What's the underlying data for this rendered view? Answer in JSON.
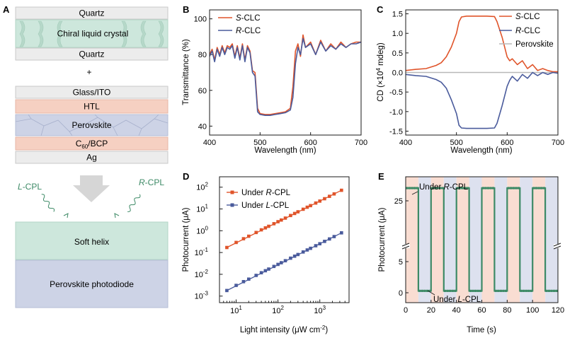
{
  "panel_A": {
    "label": "A",
    "top_stack": {
      "quartz_top": "Quartz",
      "clc": "Chiral liquid crystal",
      "quartz_bottom": "Quartz"
    },
    "plus": "+",
    "device_stack": {
      "glass": "Glass/ITO",
      "htl": "HTL",
      "perovskite": "Perovskite",
      "c60": "C",
      "c60_sub": "60",
      "c60_rest": "/BCP",
      "ag": "Ag"
    },
    "lcpl_prefix": "L",
    "lcpl_suffix": "-CPL",
    "rcpl_prefix": "R",
    "rcpl_suffix": "-CPL",
    "soft_helix": "Soft helix",
    "photodiode": "Perovskite photodiode",
    "colors": {
      "quartz": "#ececec",
      "clc": "#cde7dc",
      "htl": "#f6d0c2",
      "perovskite": "#cdd3e6",
      "green": "#3d8a66"
    }
  },
  "chart_data": [
    {
      "panel": "B",
      "type": "line",
      "xlabel": "Wavelength (nm)",
      "ylabel": "Transmittance (%)",
      "xlim": [
        400,
        700
      ],
      "ylim": [
        35,
        105
      ],
      "xticks": [
        400,
        500,
        600,
        700
      ],
      "yticks": [
        40,
        60,
        80,
        100
      ],
      "legend_position": "top-left",
      "series": [
        {
          "name_prefix": "S",
          "name_suffix": "-CLC",
          "color": "#e0542a",
          "x": [
            400,
            405,
            410,
            415,
            420,
            425,
            430,
            435,
            440,
            445,
            450,
            455,
            460,
            465,
            470,
            475,
            480,
            485,
            490,
            495,
            500,
            510,
            520,
            530,
            540,
            550,
            560,
            565,
            570,
            575,
            580,
            585,
            590,
            600,
            610,
            620,
            630,
            640,
            650,
            660,
            670,
            680,
            690,
            700
          ],
          "y": [
            80,
            83,
            77,
            84,
            80,
            85,
            81,
            85,
            84,
            86,
            79,
            85,
            78,
            86,
            77,
            85,
            82,
            71,
            70,
            50,
            47,
            46.5,
            46.5,
            47,
            47.5,
            48,
            50,
            62,
            82,
            86,
            79,
            91,
            84,
            87,
            80,
            88,
            82,
            86,
            83,
            87,
            84,
            86,
            87,
            87
          ]
        },
        {
          "name_prefix": "R",
          "name_suffix": "-CLC",
          "color": "#4a5b9c",
          "x": [
            400,
            405,
            410,
            415,
            420,
            425,
            430,
            435,
            440,
            445,
            450,
            455,
            460,
            465,
            470,
            475,
            480,
            485,
            490,
            495,
            500,
            510,
            520,
            530,
            540,
            550,
            560,
            565,
            570,
            575,
            580,
            585,
            590,
            600,
            610,
            620,
            630,
            640,
            650,
            660,
            670,
            680,
            690,
            700
          ],
          "y": [
            79,
            82,
            76,
            83,
            79,
            84,
            80,
            84,
            83,
            85,
            78,
            84,
            77,
            85,
            76,
            84,
            81,
            70,
            68,
            48,
            46.5,
            46,
            46,
            46.5,
            47,
            47.5,
            49,
            56,
            75,
            84,
            80,
            89,
            84,
            86,
            80,
            87,
            82,
            85,
            83,
            86,
            84,
            86,
            86,
            87
          ]
        }
      ]
    },
    {
      "panel": "C",
      "type": "line",
      "xlabel": "Wavelength (nm)",
      "ylabel_prefix": "CD (×10",
      "ylabel_sup": "4",
      "ylabel_suffix": " mdeg)",
      "xlim": [
        400,
        700
      ],
      "ylim": [
        -1.6,
        1.6
      ],
      "xticks": [
        400,
        500,
        600,
        700
      ],
      "yticks": [
        1.5,
        1.0,
        0.5,
        0.0,
        -0.5,
        -1.0,
        -1.5
      ],
      "ytick_labels": [
        "1.5",
        "1.0",
        "0.5",
        "0.0",
        "-0.5",
        "-1.0",
        "-1.5"
      ],
      "legend_position": "top-right",
      "series": [
        {
          "name_prefix": "S",
          "name_suffix": "-CLC",
          "color": "#e0542a",
          "x": [
            400,
            420,
            440,
            460,
            470,
            480,
            490,
            500,
            505,
            510,
            520,
            540,
            560,
            575,
            580,
            590,
            600,
            605,
            610,
            620,
            630,
            640,
            650,
            660,
            670,
            680,
            690,
            700
          ],
          "y": [
            0.05,
            0.08,
            0.1,
            0.18,
            0.25,
            0.4,
            0.65,
            1.0,
            1.3,
            1.42,
            1.44,
            1.44,
            1.44,
            1.43,
            1.3,
            0.9,
            0.4,
            0.3,
            0.35,
            0.2,
            0.3,
            0.1,
            0.2,
            0.05,
            0.1,
            0.05,
            0.02,
            0.02
          ]
        },
        {
          "name_prefix": "R",
          "name_suffix": "-CLC",
          "color": "#4a5b9c",
          "x": [
            400,
            420,
            440,
            460,
            470,
            480,
            490,
            500,
            505,
            510,
            520,
            540,
            560,
            575,
            580,
            590,
            600,
            605,
            610,
            620,
            630,
            640,
            650,
            660,
            670,
            680,
            690,
            700
          ],
          "y": [
            -0.05,
            -0.08,
            -0.1,
            -0.18,
            -0.25,
            -0.4,
            -0.7,
            -1.05,
            -1.35,
            -1.42,
            -1.43,
            -1.43,
            -1.43,
            -1.42,
            -1.3,
            -0.85,
            -0.35,
            -0.2,
            -0.1,
            -0.22,
            -0.05,
            -0.15,
            0.0,
            -0.08,
            0.0,
            -0.05,
            0.0,
            -0.02
          ]
        },
        {
          "name_prefix": "",
          "name_suffix": "Perovskite",
          "color": "#b8b8b8",
          "x": [
            400,
            700
          ],
          "y": [
            0,
            0
          ]
        }
      ]
    },
    {
      "panel": "D",
      "type": "scatter",
      "xlabel_prefix": "Light intensity (μW cm",
      "xlabel_sup": "-2",
      "xlabel_suffix": ")",
      "ylabel": "Photocurrent (μA)",
      "xscale": "log",
      "yscale": "log",
      "xlim": [
        4,
        5000
      ],
      "ylim": [
        0.0005,
        300
      ],
      "xticks": [
        10,
        100,
        1000
      ],
      "xtick_base": "10",
      "xtick_exps": [
        "1",
        "2",
        "3"
      ],
      "yticks": [
        0.001,
        0.01,
        0.1,
        1,
        10,
        100
      ],
      "ytick_base": "10",
      "ytick_exps": [
        "-3",
        "-2",
        "-1",
        "0",
        "1",
        "2"
      ],
      "legend_position": "top-left",
      "series": [
        {
          "name_prefix": "Under ",
          "name_italic": "R",
          "name_suffix": "-CPL",
          "color": "#e0542a",
          "x": [
            6,
            10,
            15,
            20,
            30,
            40,
            50,
            60,
            80,
            100,
            120,
            150,
            200,
            250,
            300,
            400,
            500,
            600,
            800,
            1000,
            1300,
            1700,
            2200,
            3300
          ],
          "y": [
            0.17,
            0.29,
            0.43,
            0.56,
            0.83,
            1.1,
            1.35,
            1.6,
            2.1,
            2.6,
            3.1,
            3.8,
            5.0,
            6.2,
            7.4,
            9.7,
            12,
            14.2,
            18.7,
            23,
            29.5,
            38,
            49,
            72
          ]
        },
        {
          "name_prefix": "Under ",
          "name_italic": "L",
          "name_suffix": "-CPL",
          "color": "#4a5b9c",
          "x": [
            6,
            10,
            15,
            20,
            30,
            40,
            50,
            60,
            80,
            100,
            120,
            150,
            200,
            250,
            300,
            400,
            500,
            600,
            800,
            1000,
            1300,
            1700,
            2200,
            3300
          ],
          "y": [
            0.0018,
            0.0031,
            0.0046,
            0.006,
            0.0089,
            0.0118,
            0.0146,
            0.0174,
            0.023,
            0.0285,
            0.034,
            0.042,
            0.055,
            0.068,
            0.081,
            0.106,
            0.131,
            0.156,
            0.205,
            0.253,
            0.325,
            0.42,
            0.54,
            0.8
          ]
        }
      ]
    },
    {
      "panel": "E",
      "type": "line",
      "xlabel": "Time (s)",
      "ylabel": "Photocurrent (μA)",
      "xlim": [
        0,
        120
      ],
      "xticks": [
        0,
        20,
        40,
        60,
        80,
        100,
        120
      ],
      "yticks": [
        0,
        5,
        25
      ],
      "y_axis_break": true,
      "annotation_high_prefix": "Under ",
      "annotation_high_italic": "R",
      "annotation_high_suffix": "-CPL",
      "annotation_low_prefix": "Under ",
      "annotation_low_italic": "L",
      "annotation_low_suffix": "-CPL",
      "high_value": 26.2,
      "low_value": 0.3,
      "band_colors": {
        "R": "#f9ddd2",
        "L": "#dde1ef"
      },
      "bands": [
        {
          "start": 0,
          "end": 10,
          "pol": "R"
        },
        {
          "start": 10,
          "end": 20,
          "pol": "L"
        },
        {
          "start": 20,
          "end": 30,
          "pol": "R"
        },
        {
          "start": 30,
          "end": 40,
          "pol": "L"
        },
        {
          "start": 40,
          "end": 50,
          "pol": "R"
        },
        {
          "start": 50,
          "end": 60,
          "pol": "L"
        },
        {
          "start": 60,
          "end": 70,
          "pol": "R"
        },
        {
          "start": 70,
          "end": 80,
          "pol": "L"
        },
        {
          "start": 80,
          "end": 90,
          "pol": "R"
        },
        {
          "start": 90,
          "end": 100,
          "pol": "L"
        },
        {
          "start": 100,
          "end": 110,
          "pol": "R"
        },
        {
          "start": 110,
          "end": 120,
          "pol": "L"
        }
      ],
      "series": [
        {
          "name": "",
          "color": "#3d8a66",
          "x": [
            0,
            10,
            10,
            20,
            20,
            30,
            30,
            40,
            40,
            50,
            50,
            60,
            60,
            70,
            70,
            80,
            80,
            90,
            90,
            100,
            100,
            110,
            110,
            120
          ],
          "y": [
            26.2,
            26.2,
            0.3,
            0.3,
            26.2,
            26.2,
            0.3,
            0.3,
            26.2,
            26.2,
            0.3,
            0.3,
            26.2,
            26.2,
            0.3,
            0.3,
            26.2,
            26.2,
            0.3,
            0.3,
            26.2,
            26.2,
            0.3,
            0.3
          ]
        }
      ]
    }
  ],
  "panel_labels": [
    "B",
    "C",
    "D",
    "E"
  ]
}
